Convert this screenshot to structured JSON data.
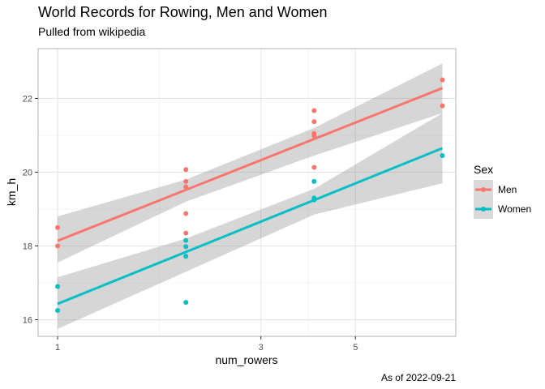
{
  "chart_data": {
    "type": "scatter",
    "title": "World Records for Rowing, Men and Women",
    "subtitle": "Pulled from wikipedia",
    "caption": "As of 2022-09-21",
    "xlabel": "num_rowers",
    "ylabel": "km_h",
    "x_scale": "log10",
    "xlim": [
      0.9,
      8.6
    ],
    "ylim": [
      15.55,
      23.35
    ],
    "x_ticks": [
      1,
      3,
      5
    ],
    "y_ticks": [
      16,
      18,
      20,
      22
    ],
    "grid": true,
    "legend": {
      "title": "Sex",
      "position": "right"
    },
    "series": [
      {
        "name": "Men",
        "color": "#F8766D",
        "points": [
          {
            "x": 1,
            "y": 18.5
          },
          {
            "x": 1,
            "y": 18.0
          },
          {
            "x": 2,
            "y": 20.07
          },
          {
            "x": 2,
            "y": 19.75
          },
          {
            "x": 2,
            "y": 19.6
          },
          {
            "x": 2,
            "y": 18.88
          },
          {
            "x": 2,
            "y": 18.35
          },
          {
            "x": 4,
            "y": 21.67
          },
          {
            "x": 4,
            "y": 21.37
          },
          {
            "x": 4,
            "y": 21.05
          },
          {
            "x": 4,
            "y": 20.98
          },
          {
            "x": 4,
            "y": 20.13
          },
          {
            "x": 8,
            "y": 22.5
          },
          {
            "x": 8,
            "y": 21.8
          }
        ],
        "fit": {
          "x": [
            1,
            8
          ],
          "y": [
            18.14,
            22.28
          ]
        },
        "ci": {
          "x": [
            1,
            2,
            4,
            8
          ],
          "lower": [
            17.55,
            19.2,
            20.45,
            21.6
          ],
          "upper": [
            18.8,
            19.8,
            21.2,
            22.95
          ]
        }
      },
      {
        "name": "Women",
        "color": "#00BFC4",
        "points": [
          {
            "x": 1,
            "y": 16.9
          },
          {
            "x": 1,
            "y": 16.25
          },
          {
            "x": 2,
            "y": 18.15
          },
          {
            "x": 2,
            "y": 17.98
          },
          {
            "x": 2,
            "y": 17.72
          },
          {
            "x": 2,
            "y": 16.47
          },
          {
            "x": 4,
            "y": 19.75
          },
          {
            "x": 4,
            "y": 19.3
          },
          {
            "x": 4,
            "y": 19.25
          },
          {
            "x": 8,
            "y": 20.45
          }
        ],
        "fit": {
          "x": [
            1,
            8
          ],
          "y": [
            16.43,
            20.65
          ]
        },
        "ci": {
          "x": [
            1,
            2,
            4,
            8
          ],
          "lower": [
            15.75,
            17.3,
            18.85,
            19.7
          ],
          "upper": [
            17.15,
            18.2,
            19.55,
            21.6
          ]
        }
      }
    ]
  }
}
